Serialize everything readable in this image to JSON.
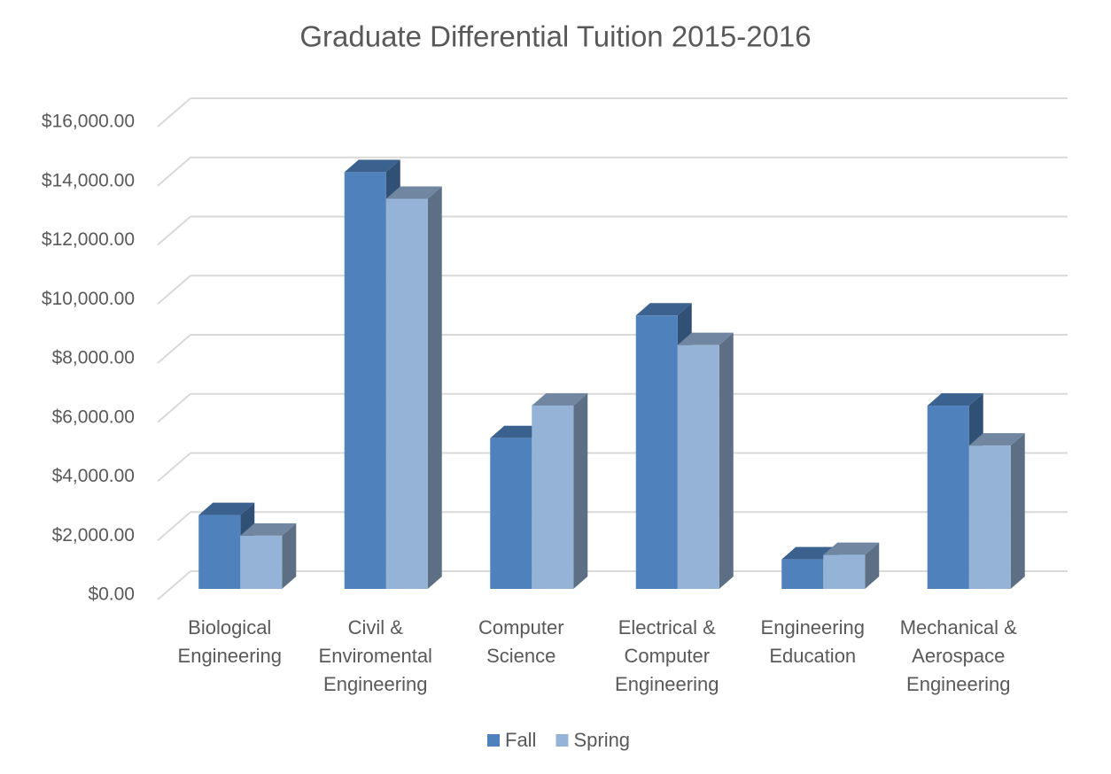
{
  "chart_data": {
    "type": "bar3d",
    "title": "Graduate Differential Tuition 2015-2016",
    "categories": [
      "Biological Engineering",
      "Civil & Enviromental Engineering",
      "Computer Science",
      "Electrical & Computer Engineering",
      "Engineering Education",
      "Mechanical & Aerospace Engineering"
    ],
    "series": [
      {
        "name": "Fall",
        "color": "#4f81bd",
        "values": [
          2500,
          14100,
          5100,
          9250,
          1000,
          6200
        ]
      },
      {
        "name": "Spring",
        "color": "#95b3d7",
        "values": [
          1800,
          13200,
          6200,
          8250,
          1150,
          4850
        ]
      }
    ],
    "ylim": [
      0,
      16000
    ],
    "yticks": [
      {
        "value": 0,
        "label": "$0.00"
      },
      {
        "value": 2000,
        "label": "$2,000.00"
      },
      {
        "value": 4000,
        "label": "$4,000.00"
      },
      {
        "value": 6000,
        "label": "$6,000.00"
      },
      {
        "value": 8000,
        "label": "$8,000.00"
      },
      {
        "value": 10000,
        "label": "$10,000.00"
      },
      {
        "value": 12000,
        "label": "$12,000.00"
      },
      {
        "value": 14000,
        "label": "$14,000.00"
      },
      {
        "value": 16000,
        "label": "$16,000.00"
      }
    ],
    "grid": true,
    "legend": "bottom"
  }
}
